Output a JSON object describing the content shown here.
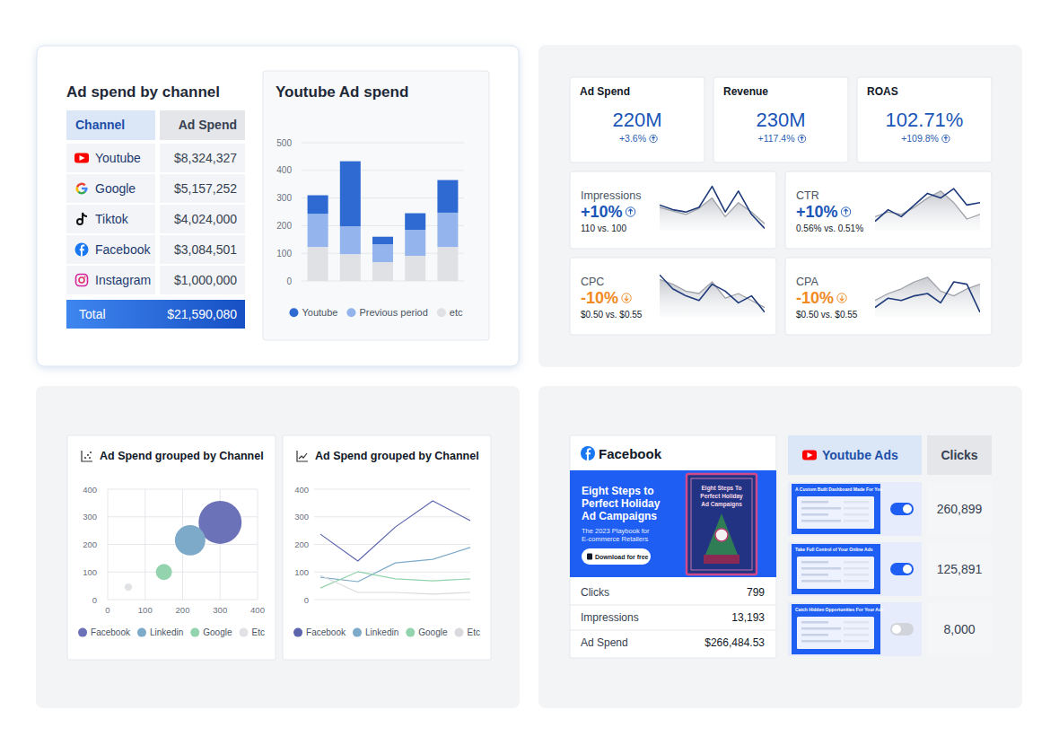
{
  "spend_table": {
    "title": "Ad spend by channel",
    "header": [
      "Channel",
      "Ad Spend"
    ],
    "rows": [
      [
        "Youtube",
        "$8,324,327"
      ],
      [
        "Google",
        "$5,157,252"
      ],
      [
        "Tiktok",
        "$4,024,000"
      ],
      [
        "Facebook",
        "$3,084,501"
      ],
      [
        "Instagram",
        "$1,000,000"
      ]
    ],
    "total": [
      "Total",
      "$21,590,080"
    ]
  },
  "kpis": [
    {
      "label": "Ad Spend",
      "value": "220M",
      "change": "+3.6%"
    },
    {
      "label": "Revenue",
      "value": "230M",
      "change": "+117.4%"
    },
    {
      "label": "ROAS",
      "value": "102.71%",
      "change": "+109.8%"
    }
  ],
  "metric_cards": [
    {
      "label": "Impressions",
      "value": "+10%",
      "comparison": "110 vs. 100"
    },
    {
      "label": "CTR",
      "value": "+10%",
      "comparison": "0.56% vs. 0.51%"
    },
    {
      "label": "CPC",
      "value": "-10%",
      "comparison": "$0.50 vs. $0.55"
    },
    {
      "label": "CPA",
      "value": "-10%",
      "comparison": "$0.50 vs. $0.55"
    }
  ],
  "chart_data": [
    {
      "type": "bar",
      "title": "Youtube Ad spend",
      "categories": [
        null,
        null,
        null,
        null,
        null
      ],
      "stacked": true,
      "grid": true,
      "legend": "bottom",
      "ylim": [
        0,
        500
      ],
      "yticks": [
        0,
        100,
        200,
        300,
        400,
        500
      ],
      "series": [
        {
          "name": "Youtube",
          "color": "#2f6ad3",
          "values": [
            67,
            235,
            27,
            60,
            118
          ]
        },
        {
          "name": "Previous period",
          "color": "#93b4ec",
          "values": [
            120,
            101,
            65,
            94,
            124
          ]
        },
        {
          "name": "etc",
          "color": "#dfe1e5",
          "values": [
            123,
            97,
            68,
            91,
            123
          ]
        }
      ]
    },
    {
      "type": "line",
      "categories": [
        null,
        null,
        null,
        null,
        null,
        null,
        null,
        null,
        null
      ],
      "ylim": [
        0,
        100
      ],
      "tick_labels": false,
      "series": [
        {
          "color": "#1e3a7a",
          "values": [
            55,
            45,
            40,
            50,
            95,
            40,
            85,
            35,
            5
          ]
        },
        {
          "type": "area",
          "color": "#9ea2a9",
          "values": [
            50,
            42,
            35,
            48,
            70,
            30,
            60,
            40,
            15
          ]
        }
      ]
    },
    {
      "type": "line",
      "categories": [
        null,
        null,
        null,
        null,
        null,
        null,
        null,
        null,
        null
      ],
      "ylim": [
        0,
        100
      ],
      "tick_labels": false,
      "series": [
        {
          "color": "#1e3a7a",
          "values": [
            20,
            45,
            30,
            55,
            80,
            70,
            90,
            55,
            60
          ]
        },
        {
          "type": "area",
          "color": "#9ea2a9",
          "values": [
            30,
            40,
            35,
            50,
            70,
            85,
            60,
            25,
            35
          ]
        }
      ]
    },
    {
      "type": "line",
      "categories": [
        null,
        null,
        null,
        null,
        null,
        null,
        null,
        null,
        null
      ],
      "ylim": [
        0,
        100
      ],
      "tick_labels": false,
      "series": [
        {
          "color": "#1e3a7a",
          "values": [
            90,
            60,
            45,
            35,
            70,
            55,
            30,
            45,
            10
          ]
        },
        {
          "type": "area",
          "color": "#9ea2a9",
          "values": [
            80,
            70,
            55,
            50,
            75,
            40,
            50,
            35,
            20
          ]
        }
      ]
    },
    {
      "type": "line",
      "categories": [
        null,
        null,
        null,
        null,
        null,
        null,
        null,
        null,
        null
      ],
      "ylim": [
        0,
        100
      ],
      "tick_labels": false,
      "series": [
        {
          "color": "#1e3a7a",
          "values": [
            20,
            40,
            35,
            45,
            50,
            30,
            75,
            70,
            10
          ]
        },
        {
          "type": "area",
          "color": "#9ea2a9",
          "values": [
            35,
            50,
            60,
            75,
            85,
            55,
            45,
            60,
            70
          ]
        }
      ]
    },
    {
      "type": "scatter",
      "title": "Ad Spend grouped by Channel",
      "marker": "circle",
      "grid": true,
      "legend": "bottom",
      "xlim": [
        0,
        400
      ],
      "ylim": [
        0,
        400
      ],
      "xticks": [
        0,
        100,
        200,
        300,
        400
      ],
      "yticks": [
        0,
        100,
        200,
        300,
        400
      ],
      "series": [
        {
          "name": "Facebook",
          "color": "#6b72b8",
          "x": [
            300
          ],
          "values": [
            280
          ],
          "sizes": [
            100
          ]
        },
        {
          "name": "Linkedin",
          "color": "#7eaac9",
          "x": [
            220
          ],
          "values": [
            215
          ],
          "sizes": [
            50
          ]
        },
        {
          "name": "Google",
          "color": "#93d3ad",
          "x": [
            150
          ],
          "values": [
            100
          ],
          "sizes": [
            14
          ]
        },
        {
          "name": "Etc",
          "color": "#e1e2e5",
          "x": [
            55
          ],
          "values": [
            45
          ],
          "sizes": [
            3
          ]
        }
      ]
    },
    {
      "type": "line",
      "title": "Ad Spend grouped by Channel",
      "categories": [
        null,
        null,
        null,
        null,
        null
      ],
      "grid": true,
      "legend": "bottom",
      "ylim": [
        0,
        400
      ],
      "yticks": [
        0,
        100,
        200,
        300,
        400
      ],
      "series": [
        {
          "name": "Facebook",
          "color": "#5c64ad",
          "values": [
            237,
            140,
            263,
            358,
            286
          ]
        },
        {
          "name": "Linkedin",
          "color": "#7eaac9",
          "values": [
            81,
            65,
            133,
            146,
            189
          ]
        },
        {
          "name": "Google",
          "color": "#93d3ad",
          "values": [
            42,
            101,
            75,
            68,
            75
          ]
        },
        {
          "name": "Etc",
          "color": "#d9dadd",
          "values": [
            88,
            26,
            26,
            20,
            26
          ]
        }
      ]
    }
  ],
  "facebook_card": {
    "title": "Facebook",
    "banner": {
      "headline": [
        "Eight Steps to",
        "Perfect Holiday",
        "Ad Campaigns"
      ],
      "subtitle": [
        "The 2023 Playbook for",
        "E-commerce Retailers"
      ],
      "button": "Download for free",
      "book_title": [
        "Eight Steps To",
        "Perfect Holiday",
        "Ad Campaigns"
      ]
    },
    "stats": [
      {
        "label": "Clicks",
        "value": "799"
      },
      {
        "label": "Impressions",
        "value": "13,193"
      },
      {
        "label": "Ad Spend",
        "value": "$266,484.53"
      }
    ]
  },
  "youtube_ads": {
    "header": [
      "Youtube Ads",
      "Clicks"
    ],
    "rows": [
      {
        "thumbnail_title": "A Custom Built Dashboard Made For You",
        "enabled": true,
        "clicks": "260,899"
      },
      {
        "thumbnail_title": "Take Full Control of Your Online Ads",
        "enabled": true,
        "clicks": "125,891"
      },
      {
        "thumbnail_title": "Catch Hidden Opportunities For Your Ads",
        "enabled": false,
        "clicks": "8,000"
      }
    ]
  }
}
